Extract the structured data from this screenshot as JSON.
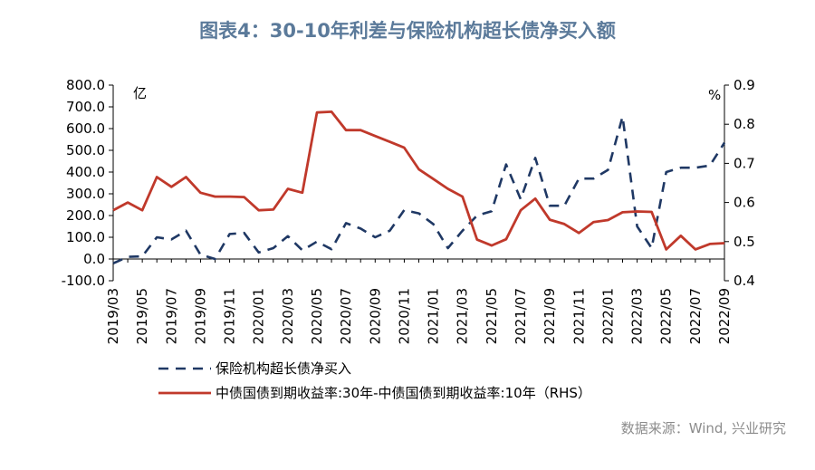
{
  "chart_data": {
    "type": "line",
    "title": "图表4：30-10年利差与保险机构超长债净买入额",
    "source": "数据来源：Wind, 兴业研究",
    "left_unit": "亿",
    "right_unit": "%",
    "ylim_left": [
      -100,
      800
    ],
    "ylim_right": [
      0.4,
      0.9
    ],
    "yticks_left": [
      "-100.0",
      "0.0",
      "100.0",
      "200.0",
      "300.0",
      "400.0",
      "500.0",
      "600.0",
      "700.0",
      "800.0"
    ],
    "yticks_right": [
      "0.4",
      "0.5",
      "0.6",
      "0.7",
      "0.8",
      "0.9"
    ],
    "xtick_labels": [
      "2019/03",
      "2019/05",
      "2019/07",
      "2019/09",
      "2019/11",
      "2020/01",
      "2020/03",
      "2020/05",
      "2020/07",
      "2020/09",
      "2020/11",
      "2021/01",
      "2021/03",
      "2021/05",
      "2021/07",
      "2021/09",
      "2021/11",
      "2022/01",
      "2022/03",
      "2022/05",
      "2022/07",
      "2022/09"
    ],
    "x": [
      "2019/03",
      "2019/04",
      "2019/05",
      "2019/06",
      "2019/07",
      "2019/08",
      "2019/09",
      "2019/10",
      "2019/11",
      "2019/12",
      "2020/01",
      "2020/02",
      "2020/03",
      "2020/04",
      "2020/05",
      "2020/06",
      "2020/07",
      "2020/08",
      "2020/09",
      "2020/10",
      "2020/11",
      "2020/12",
      "2021/01",
      "2021/02",
      "2021/03",
      "2021/04",
      "2021/05",
      "2021/06",
      "2021/07",
      "2021/08",
      "2021/09",
      "2021/10",
      "2021/11",
      "2021/12",
      "2022/01",
      "2022/02",
      "2022/03",
      "2022/04",
      "2022/05",
      "2022/06",
      "2022/07",
      "2022/08",
      "2022/09"
    ],
    "series": [
      {
        "name": "保险机构超长债净买入",
        "axis": "left",
        "style": "dashed",
        "color": "#1f3864",
        "values": [
          -20,
          10,
          12,
          100,
          90,
          130,
          20,
          0,
          115,
          120,
          30,
          50,
          105,
          40,
          80,
          45,
          165,
          140,
          100,
          130,
          225,
          210,
          160,
          50,
          130,
          200,
          220,
          435,
          275,
          465,
          245,
          245,
          370,
          370,
          410,
          655,
          150,
          50,
          400,
          420,
          420,
          430,
          535
        ]
      },
      {
        "name": "中债国债到期收益率:30年-中债国债到期收益率:10年（RHS）",
        "axis": "right",
        "style": "solid",
        "color": "#c0392b",
        "values": [
          0.58,
          0.6,
          0.58,
          0.665,
          0.64,
          0.665,
          0.625,
          0.615,
          0.615,
          0.614,
          0.58,
          0.582,
          0.635,
          0.625,
          0.83,
          0.832,
          0.785,
          0.785,
          0.77,
          0.755,
          0.74,
          0.685,
          0.66,
          0.635,
          0.615,
          0.505,
          0.49,
          0.506,
          0.58,
          0.61,
          0.556,
          0.545,
          0.522,
          0.55,
          0.555,
          0.575,
          0.577,
          0.576,
          0.48,
          0.515,
          0.48,
          0.494,
          0.496
        ]
      }
    ],
    "legend_position": "bottom",
    "grid": false
  }
}
